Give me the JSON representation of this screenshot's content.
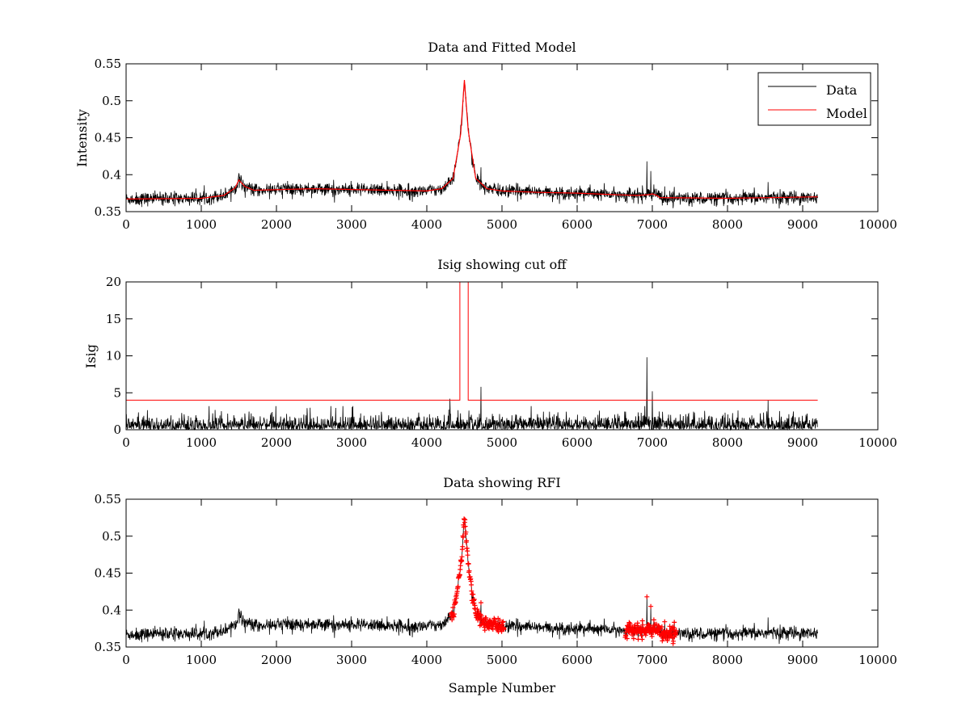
{
  "chart_data": [
    {
      "type": "line",
      "title": "Data and Fitted Model",
      "xlabel": "",
      "ylabel": "Intensity",
      "xlim": [
        0,
        10000
      ],
      "ylim": [
        0.35,
        0.55
      ],
      "xticks": [
        "0",
        "1000",
        "2000",
        "3000",
        "4000",
        "5000",
        "6000",
        "7000",
        "8000",
        "9000",
        "10000"
      ],
      "yticks": [
        "0.35",
        "0.4",
        "0.45",
        "0.5",
        "0.55"
      ],
      "legend": {
        "placement": "top-right",
        "entries": [
          "Data",
          "Model"
        ]
      },
      "series": [
        {
          "name": "Data",
          "color": "#000000",
          "x_range": [
            0,
            9200
          ],
          "baseline": 0.37,
          "noise_amplitude": 0.008
        },
        {
          "name": "Model",
          "color": "#ff0000",
          "x": [
            0,
            1000,
            1300,
            1450,
            1500,
            1580,
            1700,
            2500,
            3500,
            4000,
            4200,
            4350,
            4450,
            4500,
            4550,
            4650,
            4800,
            5000,
            5500,
            6000,
            6500,
            6800,
            6950,
            7000,
            7060,
            7100,
            8000,
            9200
          ],
          "y": [
            0.367,
            0.368,
            0.372,
            0.382,
            0.393,
            0.384,
            0.379,
            0.381,
            0.379,
            0.378,
            0.381,
            0.395,
            0.455,
            0.528,
            0.46,
            0.395,
            0.381,
            0.378,
            0.376,
            0.375,
            0.373,
            0.372,
            0.373,
            0.374,
            0.372,
            0.369,
            0.368,
            0.37
          ]
        }
      ],
      "spikes": [
        {
          "x": 1500,
          "y": 0.402
        },
        {
          "x": 4720,
          "y": 0.41
        },
        {
          "x": 6930,
          "y": 0.418
        },
        {
          "x": 6980,
          "y": 0.405
        },
        {
          "x": 8540,
          "y": 0.39
        }
      ]
    },
    {
      "type": "line",
      "title": "Isig showing cut off",
      "xlabel": "",
      "ylabel": "Isig",
      "xlim": [
        0,
        10000
      ],
      "ylim": [
        0,
        20
      ],
      "xticks": [
        "0",
        "1000",
        "2000",
        "3000",
        "4000",
        "5000",
        "6000",
        "7000",
        "8000",
        "9000",
        "10000"
      ],
      "yticks": [
        "0",
        "5",
        "10",
        "15",
        "20"
      ],
      "series": [
        {
          "name": "Isig",
          "color": "#000000",
          "x_range": [
            0,
            9200
          ],
          "typical_max": 2.5
        },
        {
          "name": "Cut off",
          "color": "#ff0000",
          "x": [
            0,
            4440,
            4440,
            4550,
            4550,
            9200
          ],
          "y": [
            4,
            4,
            20,
            20,
            4,
            4
          ]
        }
      ],
      "spikes": [
        {
          "x": 4310,
          "y": 4.2
        },
        {
          "x": 4720,
          "y": 5.8
        },
        {
          "x": 6930,
          "y": 9.8
        },
        {
          "x": 7000,
          "y": 5.2
        },
        {
          "x": 8540,
          "y": 4.0
        }
      ]
    },
    {
      "type": "scatter",
      "title": "Data showing RFI",
      "xlabel": "Sample Number",
      "ylabel": "",
      "xlim": [
        0,
        10000
      ],
      "ylim": [
        0.35,
        0.55
      ],
      "xticks": [
        "0",
        "1000",
        "2000",
        "3000",
        "4000",
        "5000",
        "6000",
        "7000",
        "8000",
        "9000",
        "10000"
      ],
      "yticks": [
        "0.35",
        "0.4",
        "0.45",
        "0.5",
        "0.55"
      ],
      "series": [
        {
          "name": "Data",
          "color": "#000000",
          "x_range": [
            0,
            9200
          ]
        },
        {
          "name": "RFI",
          "color": "#ff0000",
          "x_ranges": [
            [
              4320,
              5030
            ],
            [
              6640,
              7320
            ]
          ],
          "marker": "+"
        }
      ]
    }
  ]
}
